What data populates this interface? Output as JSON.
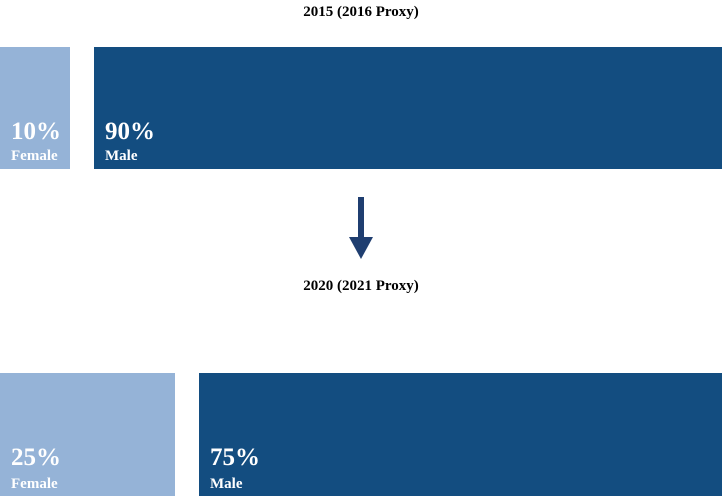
{
  "chart_data": [
    {
      "type": "bar",
      "title": "2015 (2016 Proxy)",
      "categories": [
        "Female",
        "Male"
      ],
      "values": [
        10,
        90
      ],
      "value_labels": [
        "10%",
        "90%"
      ],
      "colors": [
        "#95b3d7",
        "#134d80"
      ]
    },
    {
      "type": "bar",
      "title": "2020 (2021 Proxy)",
      "categories": [
        "Female",
        "Male"
      ],
      "values": [
        25,
        75
      ],
      "value_labels": [
        "25%",
        "75%"
      ],
      "colors": [
        "#95b3d7",
        "#134d80"
      ]
    }
  ],
  "arrow": {
    "icon": "arrow-down-icon",
    "color": "#1f3e70"
  }
}
